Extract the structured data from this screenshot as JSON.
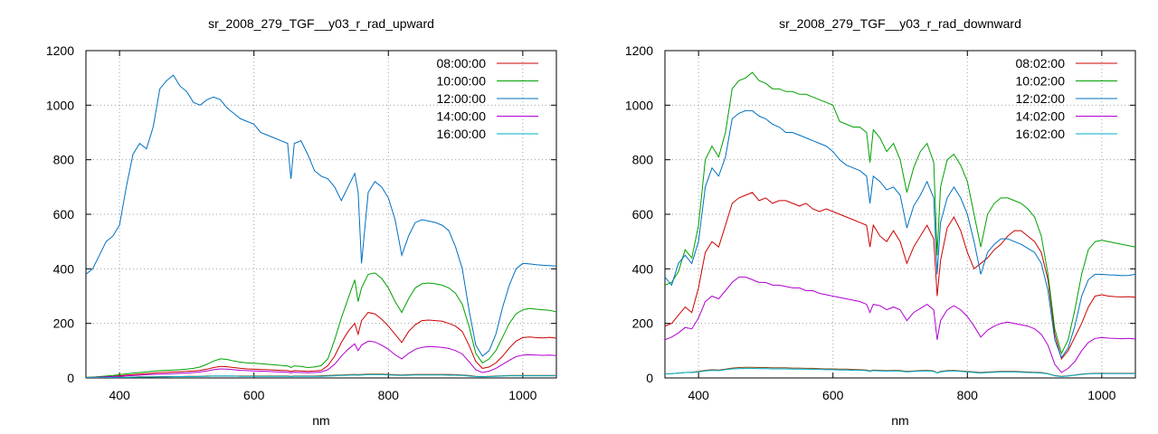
{
  "chart_data": [
    {
      "type": "line",
      "title": "sr_2008_279_TGF__y03_r_rad_upward",
      "xlabel": "nm",
      "ylabel": "",
      "xlim": [
        350,
        1050
      ],
      "ylim": [
        0,
        1200
      ],
      "xticks": [
        400,
        600,
        800,
        1000
      ],
      "yticks": [
        0,
        200,
        400,
        600,
        800,
        1000,
        1200
      ],
      "grid": true,
      "legend_position": "top-right",
      "x": [
        350,
        360,
        370,
        380,
        390,
        400,
        410,
        420,
        430,
        440,
        450,
        460,
        470,
        480,
        490,
        500,
        510,
        520,
        530,
        540,
        550,
        560,
        570,
        580,
        590,
        600,
        610,
        620,
        630,
        640,
        650,
        655,
        660,
        670,
        680,
        690,
        700,
        710,
        720,
        730,
        740,
        750,
        755,
        760,
        770,
        780,
        790,
        800,
        810,
        820,
        830,
        840,
        850,
        860,
        870,
        880,
        890,
        900,
        910,
        920,
        930,
        940,
        950,
        960,
        970,
        980,
        990,
        1000,
        1010,
        1020,
        1030,
        1040,
        1050
      ],
      "series": [
        {
          "name": "08:00:00",
          "color": "#cc0000",
          "values": [
            2,
            3,
            4,
            5,
            6,
            8,
            10,
            12,
            14,
            16,
            18,
            20,
            21,
            22,
            23,
            24,
            26,
            28,
            32,
            38,
            42,
            41,
            38,
            35,
            33,
            32,
            31,
            30,
            29,
            28,
            27,
            24,
            27,
            26,
            24,
            26,
            28,
            45,
            80,
            130,
            170,
            200,
            160,
            210,
            240,
            235,
            215,
            190,
            160,
            130,
            170,
            195,
            210,
            212,
            210,
            208,
            200,
            190,
            170,
            120,
            60,
            35,
            40,
            55,
            80,
            110,
            135,
            148,
            150,
            148,
            147,
            149,
            146
          ]
        },
        {
          "name": "10:00:00",
          "color": "#00a000",
          "values": [
            2,
            3,
            5,
            7,
            9,
            12,
            15,
            18,
            20,
            22,
            25,
            27,
            28,
            29,
            30,
            32,
            35,
            40,
            50,
            62,
            70,
            68,
            62,
            58,
            55,
            54,
            52,
            50,
            48,
            46,
            44,
            38,
            44,
            42,
            38,
            40,
            45,
            70,
            140,
            220,
            290,
            360,
            280,
            330,
            380,
            385,
            365,
            330,
            280,
            240,
            290,
            330,
            345,
            348,
            345,
            340,
            330,
            310,
            270,
            190,
            90,
            55,
            70,
            100,
            150,
            200,
            235,
            250,
            255,
            252,
            250,
            248,
            242
          ]
        },
        {
          "name": "12:00:00",
          "color": "#0070c0",
          "values": [
            380,
            400,
            450,
            500,
            520,
            560,
            700,
            820,
            860,
            840,
            920,
            1060,
            1090,
            1110,
            1070,
            1050,
            1010,
            1000,
            1020,
            1030,
            1020,
            990,
            970,
            950,
            940,
            930,
            900,
            890,
            880,
            870,
            860,
            730,
            860,
            870,
            820,
            760,
            740,
            730,
            700,
            650,
            700,
            750,
            680,
            420,
            680,
            720,
            700,
            660,
            580,
            450,
            520,
            570,
            580,
            575,
            570,
            560,
            540,
            480,
            400,
            250,
            120,
            80,
            100,
            160,
            260,
            340,
            400,
            420,
            418,
            415,
            413,
            412,
            410
          ]
        },
        {
          "name": "14:00:00",
          "color": "#b000d0",
          "values": [
            1,
            2,
            3,
            4,
            5,
            6,
            8,
            9,
            10,
            12,
            13,
            14,
            15,
            16,
            17,
            18,
            20,
            22,
            26,
            30,
            33,
            32,
            30,
            28,
            27,
            26,
            25,
            24,
            23,
            22,
            21,
            19,
            21,
            20,
            19,
            20,
            22,
            30,
            50,
            80,
            105,
            125,
            100,
            120,
            135,
            132,
            120,
            105,
            85,
            70,
            90,
            105,
            112,
            115,
            114,
            112,
            108,
            100,
            88,
            60,
            30,
            20,
            25,
            35,
            50,
            65,
            78,
            84,
            85,
            84,
            83,
            84,
            82
          ]
        },
        {
          "name": "16:00:00",
          "color": "#00b0c8",
          "values": [
            1,
            1,
            1,
            1,
            2,
            2,
            2,
            3,
            3,
            3,
            4,
            4,
            4,
            5,
            5,
            5,
            5,
            6,
            6,
            7,
            7,
            7,
            7,
            6,
            6,
            6,
            6,
            6,
            6,
            6,
            6,
            5,
            6,
            6,
            6,
            6,
            6,
            7,
            8,
            9,
            10,
            11,
            10,
            11,
            12,
            12,
            12,
            11,
            10,
            9,
            10,
            11,
            11,
            11,
            11,
            11,
            10,
            10,
            9,
            7,
            5,
            4,
            5,
            6,
            7,
            8,
            8,
            8,
            8,
            8,
            8,
            8,
            8
          ]
        }
      ],
      "extra_series": [
        {
          "name": "",
          "color": "#8b4513",
          "values": [
            1,
            1,
            2,
            2,
            2,
            3,
            3,
            3,
            4,
            4,
            4,
            5,
            5,
            5,
            5,
            6,
            6,
            6,
            7,
            7,
            7,
            7,
            7,
            7,
            7,
            7,
            7,
            7,
            7,
            7,
            7,
            6,
            7,
            7,
            7,
            7,
            8,
            9,
            10,
            11,
            12,
            13,
            12,
            13,
            14,
            14,
            14,
            13,
            12,
            11,
            12,
            13,
            13,
            13,
            13,
            13,
            13,
            12,
            11,
            9,
            6,
            5,
            6,
            7,
            8,
            9,
            9,
            9,
            9,
            9,
            9,
            9,
            9
          ]
        }
      ]
    },
    {
      "type": "line",
      "title": "sr_2008_279_TGF__y03_r_rad_downward",
      "xlabel": "nm",
      "ylabel": "",
      "xlim": [
        350,
        1050
      ],
      "ylim": [
        0,
        1200
      ],
      "xticks": [
        400,
        600,
        800,
        1000
      ],
      "yticks": [
        0,
        200,
        400,
        600,
        800,
        1000,
        1200
      ],
      "grid": true,
      "legend_position": "top-right",
      "x": [
        350,
        360,
        370,
        380,
        390,
        400,
        410,
        420,
        430,
        440,
        450,
        460,
        470,
        480,
        490,
        500,
        510,
        520,
        530,
        540,
        550,
        560,
        570,
        580,
        590,
        600,
        610,
        620,
        630,
        640,
        650,
        655,
        660,
        670,
        680,
        690,
        700,
        710,
        720,
        730,
        740,
        750,
        755,
        760,
        770,
        780,
        790,
        800,
        810,
        820,
        830,
        840,
        850,
        860,
        870,
        880,
        890,
        900,
        910,
        920,
        930,
        940,
        950,
        960,
        970,
        980,
        990,
        1000,
        1010,
        1020,
        1030,
        1040,
        1050
      ],
      "series": [
        {
          "name": "08:02:00",
          "color": "#cc0000",
          "values": [
            190,
            200,
            230,
            260,
            240,
            330,
            460,
            500,
            480,
            560,
            640,
            660,
            670,
            680,
            650,
            660,
            640,
            650,
            650,
            640,
            630,
            640,
            620,
            610,
            620,
            610,
            600,
            590,
            580,
            570,
            560,
            480,
            560,
            520,
            500,
            540,
            500,
            420,
            480,
            520,
            560,
            510,
            300,
            430,
            550,
            590,
            540,
            460,
            400,
            420,
            440,
            470,
            490,
            520,
            540,
            540,
            520,
            500,
            460,
            360,
            160,
            70,
            100,
            150,
            200,
            260,
            300,
            305,
            300,
            298,
            297,
            298,
            296
          ]
        },
        {
          "name": "10:02:00",
          "color": "#00a000",
          "values": [
            340,
            350,
            390,
            470,
            440,
            560,
            800,
            850,
            810,
            900,
            1060,
            1090,
            1100,
            1120,
            1090,
            1080,
            1060,
            1060,
            1050,
            1050,
            1040,
            1040,
            1030,
            1020,
            1010,
            1000,
            940,
            930,
            920,
            920,
            900,
            790,
            910,
            880,
            830,
            860,
            800,
            680,
            770,
            830,
            860,
            790,
            450,
            700,
            800,
            820,
            780,
            720,
            600,
            480,
            600,
            640,
            660,
            660,
            650,
            640,
            620,
            590,
            520,
            380,
            180,
            90,
            140,
            250,
            380,
            470,
            500,
            505,
            500,
            495,
            490,
            485,
            480
          ]
        },
        {
          "name": "12:02:00",
          "color": "#0070c0",
          "values": [
            370,
            340,
            420,
            450,
            420,
            500,
            700,
            770,
            740,
            810,
            950,
            970,
            980,
            980,
            960,
            950,
            930,
            920,
            900,
            900,
            890,
            880,
            870,
            860,
            850,
            830,
            800,
            780,
            770,
            760,
            740,
            640,
            740,
            720,
            690,
            700,
            670,
            550,
            630,
            670,
            720,
            660,
            380,
            570,
            660,
            700,
            660,
            600,
            500,
            380,
            460,
            490,
            510,
            510,
            500,
            490,
            475,
            460,
            420,
            320,
            140,
            75,
            110,
            190,
            300,
            360,
            380,
            380,
            378,
            377,
            375,
            376,
            380
          ]
        },
        {
          "name": "14:02:00",
          "color": "#b000d0",
          "values": [
            140,
            150,
            165,
            185,
            180,
            220,
            280,
            300,
            290,
            320,
            350,
            370,
            370,
            360,
            350,
            350,
            340,
            340,
            335,
            330,
            330,
            320,
            320,
            310,
            305,
            300,
            295,
            290,
            285,
            280,
            270,
            240,
            270,
            265,
            250,
            260,
            250,
            210,
            240,
            255,
            270,
            250,
            140,
            210,
            250,
            265,
            250,
            225,
            190,
            150,
            175,
            190,
            200,
            205,
            200,
            195,
            190,
            180,
            160,
            120,
            50,
            20,
            35,
            60,
            100,
            130,
            145,
            148,
            146,
            145,
            144,
            145,
            143
          ]
        },
        {
          "name": "16:02:00",
          "color": "#00b0c8",
          "values": [
            15,
            16,
            18,
            20,
            20,
            22,
            26,
            28,
            27,
            30,
            33,
            34,
            35,
            35,
            34,
            34,
            33,
            33,
            33,
            32,
            32,
            32,
            31,
            31,
            30,
            30,
            29,
            29,
            28,
            28,
            27,
            24,
            27,
            26,
            25,
            26,
            25,
            22,
            24,
            25,
            26,
            24,
            18,
            22,
            25,
            26,
            24,
            22,
            20,
            18,
            20,
            21,
            22,
            22,
            22,
            21,
            20,
            19,
            18,
            15,
            8,
            5,
            7,
            10,
            13,
            15,
            16,
            16,
            16,
            16,
            16,
            16,
            16
          ]
        }
      ],
      "extra_series": [
        {
          "name": "",
          "color": "#8b4513",
          "values": [
            15,
            16,
            18,
            20,
            21,
            24,
            28,
            30,
            29,
            32,
            36,
            38,
            39,
            39,
            38,
            38,
            37,
            37,
            37,
            36,
            36,
            35,
            35,
            34,
            33,
            33,
            32,
            32,
            31,
            30,
            29,
            26,
            29,
            28,
            27,
            28,
            27,
            24,
            26,
            27,
            28,
            26,
            19,
            24,
            27,
            28,
            26,
            24,
            22,
            20,
            22,
            23,
            24,
            24,
            24,
            23,
            22,
            21,
            20,
            16,
            9,
            6,
            8,
            11,
            14,
            16,
            17,
            17,
            17,
            17,
            17,
            17,
            17
          ]
        }
      ]
    }
  ]
}
